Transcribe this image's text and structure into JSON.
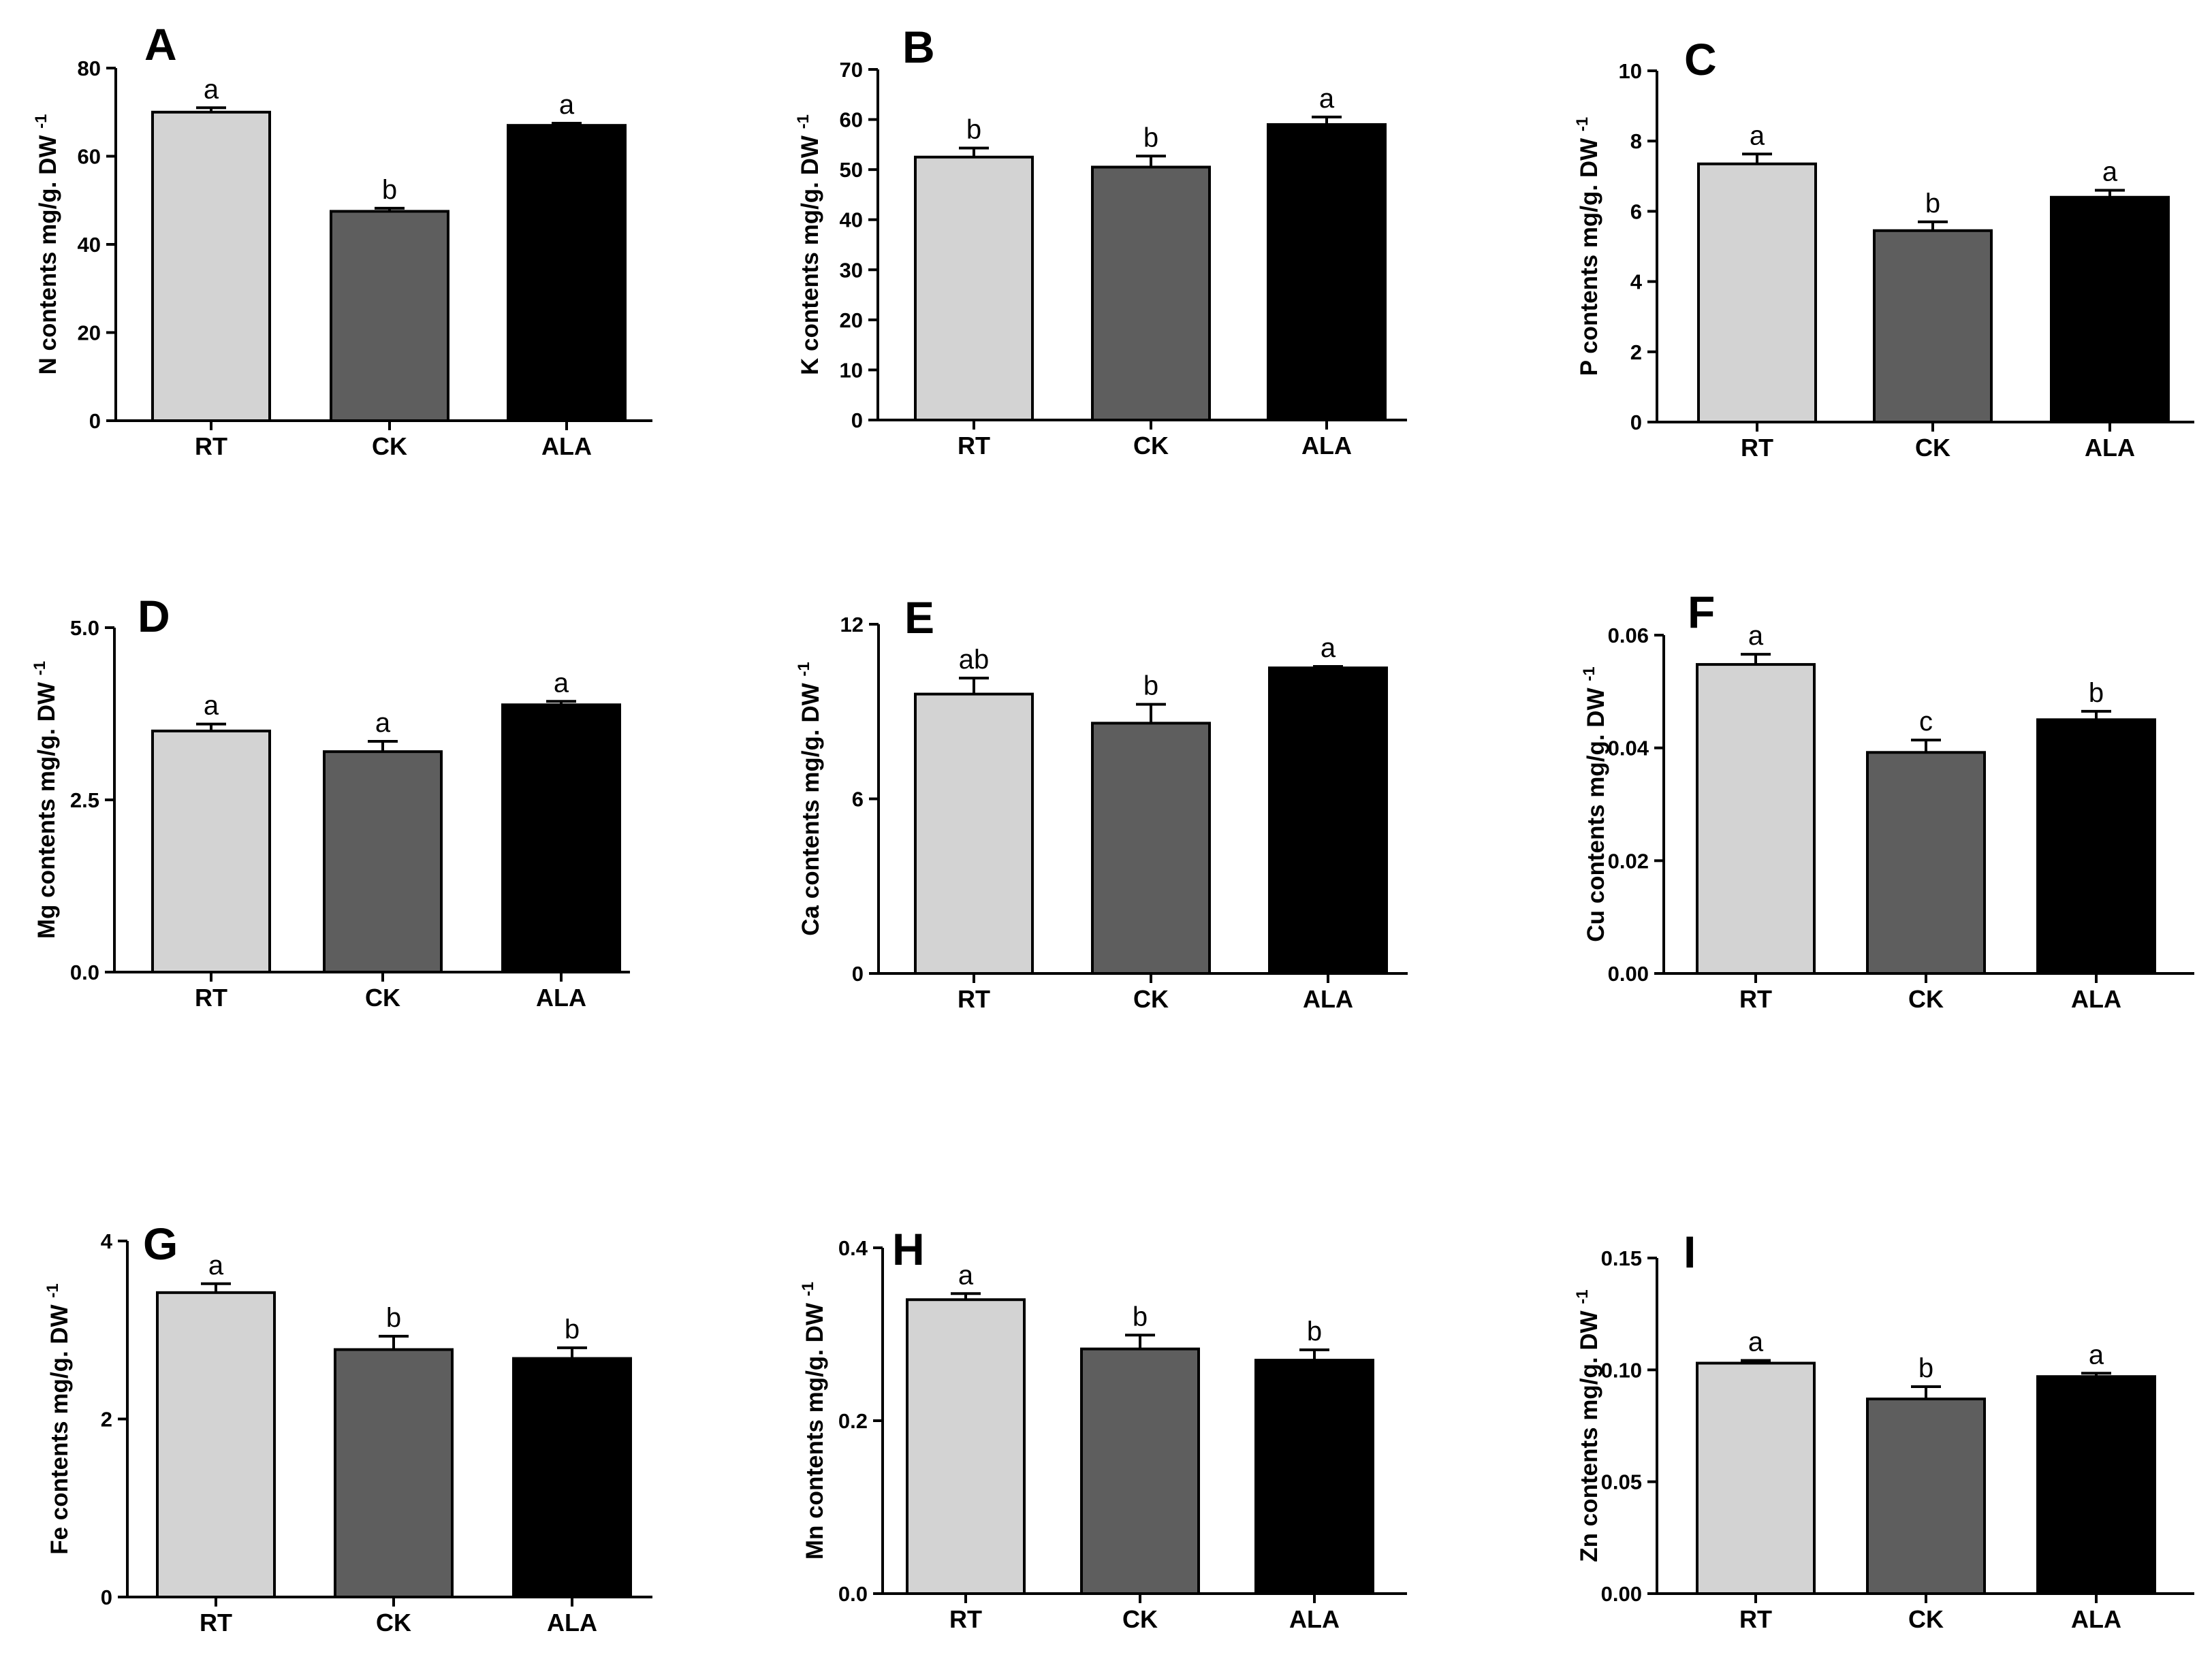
{
  "chart_data": [
    {
      "type": "bar",
      "panel": "A",
      "ylabel": "N contents mg/g. DW",
      "ylabel_sup": "-1",
      "categories": [
        "RT",
        "CK",
        "ALA"
      ],
      "values": [
        70,
        47.5,
        67
      ],
      "errors": [
        1.0,
        0.7,
        0.5
      ],
      "sig_labels": [
        "a",
        "b",
        "a"
      ],
      "ylim": [
        0,
        80
      ],
      "yticks": [
        0,
        20,
        40,
        60,
        80
      ],
      "ytick_labels": [
        "0",
        "20",
        "40",
        "60",
        "80"
      ]
    },
    {
      "type": "bar",
      "panel": "B",
      "ylabel": "K contents mg/g. DW",
      "ylabel_sup": "-1",
      "categories": [
        "RT",
        "CK",
        "ALA"
      ],
      "values": [
        52.5,
        50.5,
        59
      ],
      "errors": [
        1.8,
        2.2,
        1.5
      ],
      "sig_labels": [
        "b",
        "b",
        "a"
      ],
      "ylim": [
        0,
        70
      ],
      "yticks": [
        0,
        10,
        20,
        30,
        40,
        50,
        60,
        70
      ],
      "ytick_labels": [
        "0",
        "10",
        "20",
        "30",
        "40",
        "50",
        "60",
        "70"
      ]
    },
    {
      "type": "bar",
      "panel": "C",
      "ylabel": "P contents mg/g. DW",
      "ylabel_sup": "-1",
      "categories": [
        "RT",
        "CK",
        "ALA"
      ],
      "values": [
        7.35,
        5.45,
        6.4
      ],
      "errors": [
        0.28,
        0.25,
        0.2
      ],
      "sig_labels": [
        "a",
        "b",
        "a"
      ],
      "ylim": [
        0,
        10
      ],
      "yticks": [
        0,
        2,
        4,
        6,
        8,
        10
      ],
      "ytick_labels": [
        "0",
        "2",
        "4",
        "6",
        "8",
        "10"
      ]
    },
    {
      "type": "bar",
      "panel": "D",
      "ylabel": "Mg contents mg/g. DW",
      "ylabel_sup": "-1",
      "categories": [
        "RT",
        "CK",
        "ALA"
      ],
      "values": [
        3.5,
        3.2,
        3.88
      ],
      "errors": [
        0.1,
        0.15,
        0.05
      ],
      "sig_labels": [
        "a",
        "a",
        "a"
      ],
      "ylim": [
        0,
        5
      ],
      "yticks": [
        0,
        2.5,
        5
      ],
      "ytick_labels": [
        "0.0",
        "2.5",
        "5.0"
      ]
    },
    {
      "type": "bar",
      "panel": "E",
      "ylabel": "Ca contents mg/g. DW",
      "ylabel_sup": "-1",
      "categories": [
        "RT",
        "CK",
        "ALA"
      ],
      "values": [
        9.6,
        8.6,
        10.5
      ],
      "errors": [
        0.55,
        0.65,
        0.05
      ],
      "sig_labels": [
        "ab",
        "b",
        "a"
      ],
      "ylim": [
        0,
        12
      ],
      "yticks": [
        0,
        6,
        12
      ],
      "ytick_labels": [
        "0",
        "6",
        "12"
      ]
    },
    {
      "type": "bar",
      "panel": "F",
      "ylabel": "Cu contents mg/g. DW",
      "ylabel_sup": "-1",
      "categories": [
        "RT",
        "CK",
        "ALA"
      ],
      "values": [
        0.0548,
        0.0392,
        0.045
      ],
      "errors": [
        0.0018,
        0.0022,
        0.0015
      ],
      "sig_labels": [
        "a",
        "c",
        "b"
      ],
      "ylim": [
        0,
        0.06
      ],
      "yticks": [
        0,
        0.02,
        0.04,
        0.06
      ],
      "ytick_labels": [
        "0.00",
        "0.02",
        "0.04",
        "0.06"
      ]
    },
    {
      "type": "bar",
      "panel": "G",
      "ylabel": "Fe contents mg/g. DW",
      "ylabel_sup": "-1",
      "categories": [
        "RT",
        "CK",
        "ALA"
      ],
      "values": [
        3.42,
        2.78,
        2.68
      ],
      "errors": [
        0.1,
        0.15,
        0.12
      ],
      "sig_labels": [
        "a",
        "b",
        "b"
      ],
      "ylim": [
        0,
        4
      ],
      "yticks": [
        0,
        2,
        4
      ],
      "ytick_labels": [
        "0",
        "2",
        "4"
      ]
    },
    {
      "type": "bar",
      "panel": "H",
      "ylabel": "Mn contents mg/g. DW",
      "ylabel_sup": "-1",
      "categories": [
        "RT",
        "CK",
        "ALA"
      ],
      "values": [
        0.34,
        0.283,
        0.27
      ],
      "errors": [
        0.007,
        0.016,
        0.012
      ],
      "sig_labels": [
        "a",
        "b",
        "b"
      ],
      "ylim": [
        0,
        0.4
      ],
      "yticks": [
        0,
        0.2,
        0.4
      ],
      "ytick_labels": [
        "0.0",
        "0.2",
        "0.4"
      ]
    },
    {
      "type": "bar",
      "panel": "I",
      "ylabel": "Zn contents mg/g. DW",
      "ylabel_sup": "-1",
      "categories": [
        "RT",
        "CK",
        "ALA"
      ],
      "values": [
        0.103,
        0.087,
        0.097
      ],
      "errors": [
        0.0012,
        0.0055,
        0.0015
      ],
      "sig_labels": [
        "a",
        "b",
        "a"
      ],
      "ylim": [
        0,
        0.15
      ],
      "yticks": [
        0,
        0.05,
        0.1,
        0.15
      ],
      "ytick_labels": [
        "0.00",
        "0.05",
        "0.10",
        "0.15"
      ]
    }
  ],
  "bar_colors": [
    "#d3d3d3",
    "#5e5e5e",
    "#000000"
  ]
}
